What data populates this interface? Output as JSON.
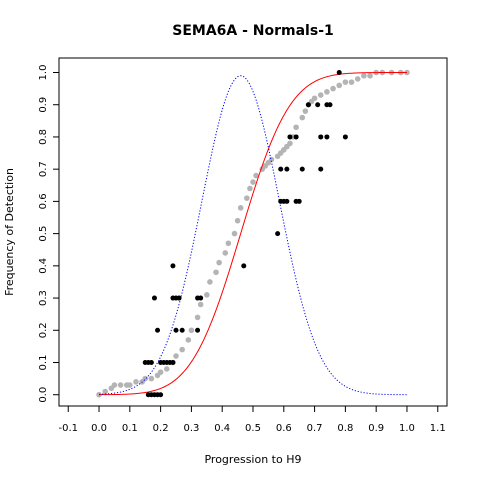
{
  "chart_data": {
    "type": "scatter",
    "title": "SEMA6A - Normals-1",
    "xlabel": "Progression to H9",
    "ylabel": "Frequency of Detection",
    "xlim": [
      -0.13,
      1.13
    ],
    "ylim": [
      -0.035,
      1.045
    ],
    "x_ticks": [
      -0.1,
      0.0,
      0.1,
      0.2,
      0.3,
      0.4,
      0.5,
      0.6,
      0.7,
      0.8,
      0.9,
      1.0,
      1.1
    ],
    "x_tick_labels": [
      "-0.1",
      "0.0",
      "0.1",
      "0.2",
      "0.3",
      "0.4",
      "0.5",
      "0.6",
      "0.7",
      "0.8",
      "0.9",
      "1.0",
      "1.1"
    ],
    "y_ticks": [
      0.0,
      0.1,
      0.2,
      0.3,
      0.4,
      0.5,
      0.6,
      0.7,
      0.8,
      0.9,
      1.0
    ],
    "y_tick_labels": [
      "0.0",
      "0.1",
      "0.2",
      "0.3",
      "0.4",
      "0.5",
      "0.6",
      "0.7",
      "0.8",
      "0.9",
      "1.0"
    ],
    "grid": false,
    "series": [
      {
        "kind": "points",
        "color": "#000000",
        "x": [
          0.2,
          0.16,
          0.17,
          0.18,
          0.19,
          0.15,
          0.16,
          0.17,
          0.2,
          0.22,
          0.23,
          0.24,
          0.21,
          0.25,
          0.27,
          0.32,
          0.19,
          0.25,
          0.32,
          0.18,
          0.24,
          0.26,
          0.33,
          0.24,
          0.47,
          0.58,
          0.59,
          0.6,
          0.61,
          0.64,
          0.65,
          0.59,
          0.61,
          0.72,
          0.66,
          0.62,
          0.64,
          0.72,
          0.74,
          0.8,
          0.68,
          0.71,
          0.74,
          0.75,
          0.78
        ],
        "y": [
          0.0,
          0.0,
          0.0,
          0.0,
          0.0,
          0.1,
          0.1,
          0.1,
          0.1,
          0.1,
          0.1,
          0.1,
          0.1,
          0.2,
          0.2,
          0.2,
          0.2,
          0.3,
          0.3,
          0.3,
          0.3,
          0.3,
          0.3,
          0.4,
          0.4,
          0.5,
          0.6,
          0.6,
          0.6,
          0.6,
          0.6,
          0.7,
          0.7,
          0.7,
          0.7,
          0.8,
          0.8,
          0.8,
          0.8,
          0.8,
          0.9,
          0.9,
          0.9,
          0.9,
          1.0
        ]
      },
      {
        "kind": "empirical-points",
        "color": "#b4b4b4",
        "x": [
          0.0,
          0.02,
          0.04,
          0.05,
          0.07,
          0.09,
          0.1,
          0.12,
          0.14,
          0.15,
          0.17,
          0.19,
          0.2,
          0.22,
          0.24,
          0.25,
          0.27,
          0.29,
          0.3,
          0.32,
          0.33,
          0.35,
          0.36,
          0.38,
          0.39,
          0.41,
          0.42,
          0.44,
          0.45,
          0.46,
          0.48,
          0.49,
          0.5,
          0.51,
          0.53,
          0.54,
          0.55,
          0.56,
          0.58,
          0.59,
          0.6,
          0.61,
          0.62,
          0.63,
          0.64,
          0.66,
          0.67,
          0.68,
          0.69,
          0.7,
          0.72,
          0.74,
          0.76,
          0.78,
          0.8,
          0.82,
          0.84,
          0.86,
          0.88,
          0.9,
          0.92,
          0.95,
          0.98,
          1.0
        ],
        "y": [
          0.0,
          0.01,
          0.02,
          0.03,
          0.03,
          0.03,
          0.03,
          0.04,
          0.04,
          0.05,
          0.05,
          0.06,
          0.07,
          0.08,
          0.1,
          0.12,
          0.14,
          0.17,
          0.2,
          0.24,
          0.28,
          0.31,
          0.35,
          0.38,
          0.41,
          0.44,
          0.47,
          0.5,
          0.54,
          0.58,
          0.61,
          0.64,
          0.66,
          0.68,
          0.7,
          0.71,
          0.72,
          0.73,
          0.74,
          0.75,
          0.76,
          0.77,
          0.78,
          0.8,
          0.83,
          0.86,
          0.88,
          0.9,
          0.91,
          0.92,
          0.93,
          0.94,
          0.95,
          0.96,
          0.97,
          0.97,
          0.98,
          0.99,
          0.99,
          1.0,
          1.0,
          1.0,
          1.0,
          1.0
        ]
      },
      {
        "kind": "fitted-cdf-line",
        "color": "#ff0000",
        "mean": 0.46,
        "sd": 0.126,
        "x_range": [
          0.0,
          1.0
        ]
      },
      {
        "kind": "density-dotted-line",
        "color": "#0000ff",
        "mean": 0.46,
        "sd": 0.126,
        "peak_y": 0.99,
        "x_range": [
          0.0,
          1.0
        ]
      }
    ]
  }
}
